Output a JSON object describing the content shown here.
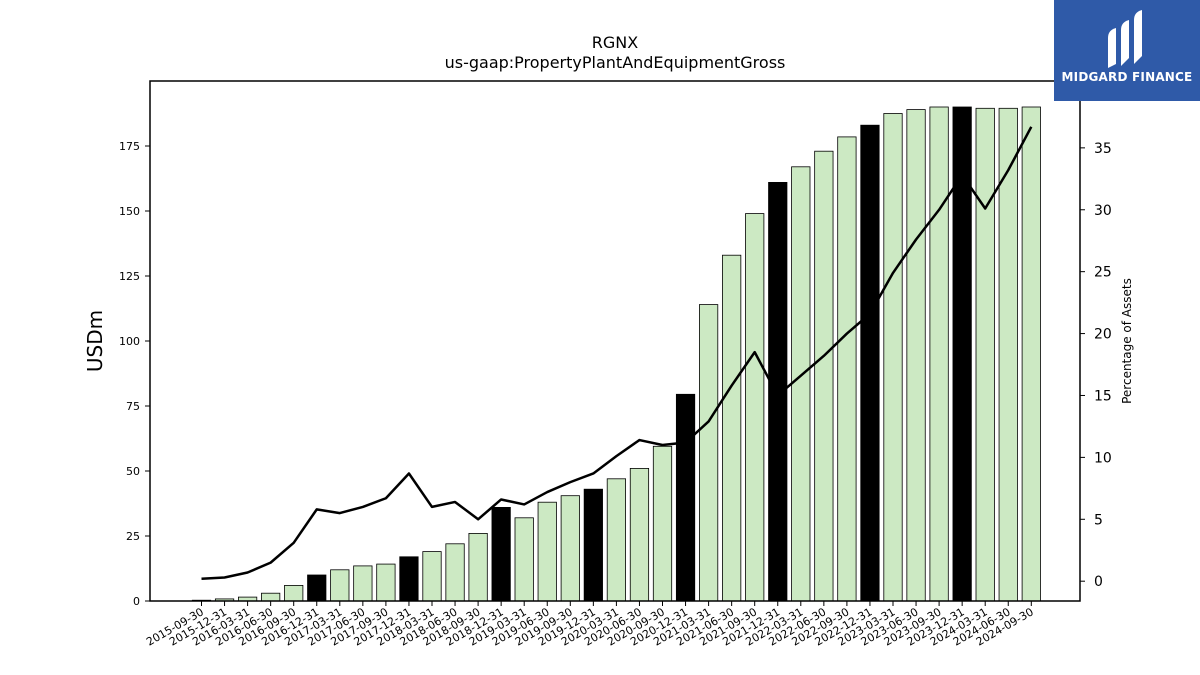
{
  "chart_data": {
    "type": "bar+line",
    "title": "RGNX",
    "subtitle": "us-gaap:PropertyPlantAndEquipmentGross",
    "ylabel": "USDm",
    "y2label": "Percentage of Assets",
    "ylim": [
      0,
      200
    ],
    "y2lim": [
      -1.6,
      40.4
    ],
    "yticks": [
      0,
      25,
      50,
      75,
      100,
      125,
      150,
      175
    ],
    "y2ticks": [
      0,
      5,
      10,
      15,
      20,
      25,
      30,
      35
    ],
    "categories": [
      "2015-09-30",
      "2015-12-31",
      "2016-03-31",
      "2016-06-30",
      "2016-09-30",
      "2016-12-31",
      "2017-03-31",
      "2017-06-30",
      "2017-09-30",
      "2017-12-31",
      "2018-03-31",
      "2018-06-30",
      "2018-09-30",
      "2018-12-31",
      "2019-03-31",
      "2019-06-30",
      "2019-09-30",
      "2019-12-31",
      "2020-03-31",
      "2020-06-30",
      "2020-09-30",
      "2020-12-31",
      "2021-03-31",
      "2021-06-30",
      "2021-09-30",
      "2021-12-31",
      "2022-03-31",
      "2022-06-30",
      "2022-09-30",
      "2022-12-31",
      "2023-03-31",
      "2023-06-30",
      "2023-09-30",
      "2023-12-31",
      "2024-03-31",
      "2024-06-30",
      "2024-09-30"
    ],
    "series": [
      {
        "type": "bar",
        "values": [
          0.3,
          0.8,
          1.5,
          3,
          6,
          10,
          12,
          13.5,
          14.2,
          17,
          19,
          22,
          26,
          36,
          32,
          38,
          40.5,
          43,
          47,
          51,
          59.5,
          79.5,
          114,
          133,
          149,
          161,
          167,
          173,
          178.5,
          183,
          187.5,
          189,
          190,
          190,
          189.5,
          189.5,
          190
        ],
        "highlight": [
          false,
          false,
          false,
          false,
          false,
          true,
          false,
          false,
          false,
          true,
          false,
          false,
          false,
          true,
          false,
          false,
          false,
          true,
          false,
          false,
          false,
          true,
          false,
          false,
          false,
          true,
          false,
          false,
          false,
          true,
          false,
          false,
          false,
          true,
          false,
          false,
          false
        ]
      },
      {
        "type": "line",
        "axis": "right",
        "values": [
          0.2,
          0.3,
          0.7,
          1.5,
          3.1,
          5.8,
          5.5,
          6,
          6.7,
          8.7,
          6,
          6.4,
          5,
          6.6,
          6.2,
          7.2,
          8,
          8.7,
          10.1,
          11.4,
          11,
          11.2,
          12.9,
          15.8,
          18.5,
          15,
          16.6,
          18.2,
          20,
          21.6,
          24.9,
          27.6,
          30,
          32.8,
          30.1,
          33.2,
          36.7
        ]
      }
    ],
    "colors": {
      "bar": "#cce9c3",
      "bar_highlight": "#000000",
      "bar_edge": "#000000",
      "line": "#000000"
    },
    "grid": false
  },
  "logo": {
    "text": "MIDGARD FINANCE",
    "bg": "#2f5aa8"
  }
}
